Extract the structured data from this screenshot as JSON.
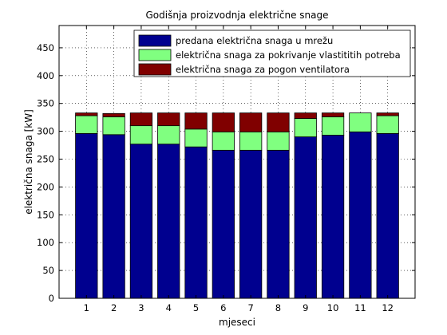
{
  "chart_data": {
    "type": "bar",
    "stacked": true,
    "title": "Godišnja proizvodnja električne snage",
    "xlabel": "mjeseci",
    "ylabel": "električna snaga [kW]",
    "categories": [
      "1",
      "2",
      "3",
      "4",
      "5",
      "6",
      "7",
      "8",
      "9",
      "10",
      "11",
      "12"
    ],
    "ylim": [
      0,
      490
    ],
    "yticks": [
      0,
      50,
      100,
      150,
      200,
      250,
      300,
      350,
      400,
      450
    ],
    "grid": true,
    "legend_position": "top-right",
    "series": [
      {
        "name": "predana električna snaga u mrežu",
        "color": "#00008f",
        "values": [
          296,
          294,
          277,
          277,
          272,
          266,
          266,
          266,
          290,
          293,
          299,
          296
        ]
      },
      {
        "name": "električna snaga za pokrivanje vlastititih potreba",
        "color": "#80ff80",
        "values": [
          32,
          32,
          33,
          33,
          32,
          33,
          33,
          33,
          33,
          33,
          34,
          32
        ]
      },
      {
        "name": "električna snaga za pogon ventilatora",
        "color": "#800000",
        "values": [
          5,
          6,
          23,
          23,
          29,
          34,
          34,
          34,
          10,
          7,
          0,
          5
        ]
      }
    ]
  }
}
